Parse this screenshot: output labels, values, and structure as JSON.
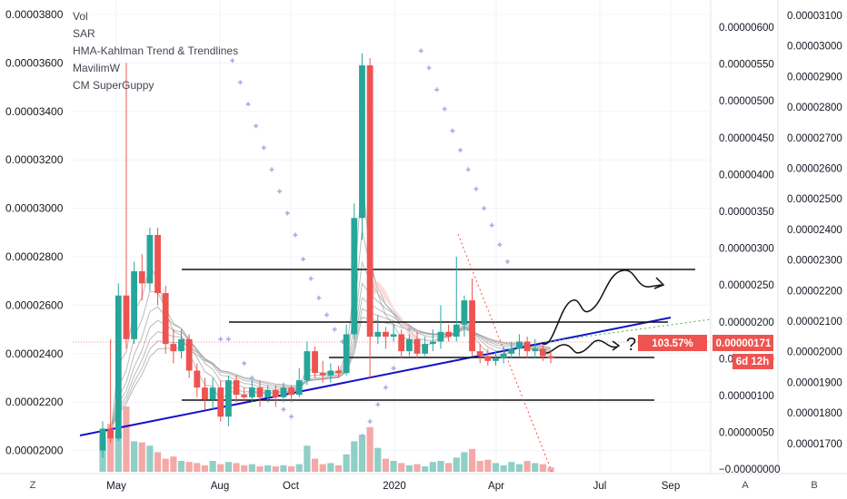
{
  "chart_data": {
    "type": "candlestick",
    "legend": [
      {
        "label": "Vol"
      },
      {
        "label": "SAR"
      },
      {
        "label": "HMA-Kahlman Trend & Trendlines"
      },
      {
        "label": "MavilimW"
      },
      {
        "label": "CM SuperGuppy"
      }
    ],
    "price_axis_left": {
      "ticks": [
        "0.00003800",
        "0.00003600",
        "0.00003400",
        "0.00003200",
        "0.00003000",
        "0.00002800",
        "0.00002600",
        "0.00002400",
        "0.00002200",
        "0.00002000"
      ],
      "range": [
        1.92e-05,
        3.82e-05
      ]
    },
    "volume_axis": {
      "ticks": [
        "0.00000600",
        "0.00000550",
        "0.00000500",
        "0.00000450",
        "0.00000400",
        "0.00000350",
        "0.00000300",
        "0.00000250",
        "0.00000200",
        "0.00000150",
        "0.00000100",
        "0.00000050",
        "−0.00000000"
      ]
    },
    "far_right_axis": {
      "ticks": [
        "0.00003100",
        "0.00003000",
        "0.00002900",
        "0.00002800",
        "0.00002700",
        "0.00002600",
        "0.00002500",
        "0.00002400",
        "0.00002300",
        "0.00002200",
        "0.00002100",
        "0.00002000",
        "0.00001900",
        "0.00001800",
        "0.00001700"
      ]
    },
    "x_axis": {
      "ticks": [
        "May",
        "Aug",
        "Oct",
        "2020",
        "Apr",
        "Jul",
        "Sep"
      ]
    },
    "badges": {
      "percent": "103.57%",
      "price": "0.00000171",
      "countdown": "6d 12h"
    },
    "annotation_text": "?",
    "colors": {
      "up": "#26a69a",
      "down": "#ef5350",
      "up_volume": "#8fcfc6",
      "down_volume": "#f4a9a7",
      "trendline": "#1414c8",
      "level_lines": "#111111",
      "sar": "#b4a7e6",
      "price_line": "#ef5350"
    },
    "candles": [
      [
        2e-05,
        2.09e-05,
        1.97e-05,
        2.12e-05
      ],
      [
        2.09e-05,
        2.05e-05,
        2.03e-05,
        2.46e-05
      ],
      [
        2.05e-05,
        2.64e-05,
        2.04e-05,
        2.69e-05
      ],
      [
        2.64e-05,
        2.46e-05,
        2.42e-05,
        3.6e-05
      ],
      [
        2.46e-05,
        2.74e-05,
        2.44e-05,
        2.78e-05
      ],
      [
        2.74e-05,
        2.69e-05,
        2.62e-05,
        2.81e-05
      ],
      [
        2.69e-05,
        2.89e-05,
        2.66e-05,
        2.92e-05
      ],
      [
        2.89e-05,
        2.65e-05,
        2.6e-05,
        2.92e-05
      ],
      [
        2.65e-05,
        2.44e-05,
        2.4e-05,
        2.68e-05
      ],
      [
        2.44e-05,
        2.41e-05,
        2.36e-05,
        2.5e-05
      ],
      [
        2.41e-05,
        2.46e-05,
        2.38e-05,
        2.5e-05
      ],
      [
        2.46e-05,
        2.33e-05,
        2.3e-05,
        2.48e-05
      ],
      [
        2.33e-05,
        2.26e-05,
        2.22e-05,
        2.36e-05
      ],
      [
        2.26e-05,
        2.21e-05,
        2.17e-05,
        2.3e-05
      ],
      [
        2.21e-05,
        2.26e-05,
        2.17e-05,
        2.3e-05
      ],
      [
        2.26e-05,
        2.14e-05,
        2.12e-05,
        2.29e-05
      ],
      [
        2.14e-05,
        2.29e-05,
        2.1e-05,
        2.31e-05
      ],
      [
        2.29e-05,
        2.23e-05,
        2.2e-05,
        2.31e-05
      ],
      [
        2.23e-05,
        2.22e-05,
        2.2e-05,
        2.26e-05
      ],
      [
        2.22e-05,
        2.26e-05,
        2.2e-05,
        2.29e-05
      ],
      [
        2.26e-05,
        2.22e-05,
        2.18e-05,
        2.29e-05
      ],
      [
        2.22e-05,
        2.25e-05,
        2.2e-05,
        2.27e-05
      ],
      [
        2.25e-05,
        2.22e-05,
        2.18e-05,
        2.27e-05
      ],
      [
        2.22e-05,
        2.26e-05,
        2.2e-05,
        2.28e-05
      ],
      [
        2.26e-05,
        2.23e-05,
        2.2e-05,
        2.27e-05
      ],
      [
        2.23e-05,
        2.29e-05,
        2.22e-05,
        2.34e-05
      ],
      [
        2.29e-05,
        2.41e-05,
        2.27e-05,
        2.45e-05
      ],
      [
        2.41e-05,
        2.32e-05,
        2.3e-05,
        2.43e-05
      ],
      [
        2.32e-05,
        2.31e-05,
        2.28e-05,
        2.37e-05
      ],
      [
        2.31e-05,
        2.33e-05,
        2.28e-05,
        2.36e-05
      ],
      [
        2.33e-05,
        2.32e-05,
        2.3e-05,
        2.35e-05
      ],
      [
        2.32e-05,
        2.48e-05,
        2.31e-05,
        2.52e-05
      ],
      [
        2.48e-05,
        2.96e-05,
        2.46e-05,
        3.02e-05
      ],
      [
        2.96e-05,
        3.59e-05,
        2.87e-05,
        3.64e-05
      ],
      [
        3.59e-05,
        2.47e-05,
        2.3e-05,
        3.62e-05
      ],
      [
        2.47e-05,
        2.49e-05,
        2.44e-05,
        2.56e-05
      ],
      [
        2.49e-05,
        2.47e-05,
        2.42e-05,
        2.51e-05
      ],
      [
        2.47e-05,
        2.48e-05,
        2.45e-05,
        2.52e-05
      ],
      [
        2.48e-05,
        2.41e-05,
        2.38e-05,
        2.5e-05
      ],
      [
        2.41e-05,
        2.46e-05,
        2.39e-05,
        2.48e-05
      ],
      [
        2.46e-05,
        2.4e-05,
        2.38e-05,
        2.49e-05
      ],
      [
        2.4e-05,
        2.44e-05,
        2.39e-05,
        2.47e-05
      ],
      [
        2.44e-05,
        2.45e-05,
        2.41e-05,
        2.5e-05
      ],
      [
        2.45e-05,
        2.49e-05,
        2.42e-05,
        2.6e-05
      ],
      [
        2.49e-05,
        2.47e-05,
        2.45e-05,
        2.52e-05
      ],
      [
        2.47e-05,
        2.52e-05,
        2.45e-05,
        2.8e-05
      ],
      [
        2.52e-05,
        2.62e-05,
        2.47e-05,
        2.64e-05
      ],
      [
        2.62e-05,
        2.41e-05,
        2.39e-05,
        2.71e-05
      ],
      [
        2.41e-05,
        2.39e-05,
        2.36e-05,
        2.44e-05
      ],
      [
        2.39e-05,
        2.37e-05,
        2.35e-05,
        2.42e-05
      ],
      [
        2.37e-05,
        2.38e-05,
        2.35e-05,
        2.41e-05
      ],
      [
        2.38e-05,
        2.4e-05,
        2.36e-05,
        2.43e-05
      ],
      [
        2.4e-05,
        2.42e-05,
        2.38e-05,
        2.45e-05
      ],
      [
        2.42e-05,
        2.45e-05,
        2.39e-05,
        2.48e-05
      ],
      [
        2.45e-05,
        2.41e-05,
        2.38e-05,
        2.47e-05
      ],
      [
        2.41e-05,
        2.42e-05,
        2.38e-05,
        2.46e-05
      ],
      [
        2.42e-05,
        2.39e-05,
        2.37e-05,
        2.44e-05
      ],
      [
        2.39e-05,
        2.38e-05,
        2.36e-05,
        2.41e-05
      ]
    ],
    "volumes": [
      3.2,
      4.4,
      3.6,
      6.0,
      2.8,
      2.7,
      2.4,
      1.8,
      1.2,
      1.4,
      1.0,
      0.9,
      0.8,
      0.6,
      1.0,
      0.7,
      0.9,
      0.8,
      0.6,
      0.7,
      0.5,
      0.6,
      0.5,
      0.6,
      0.5,
      0.7,
      2.4,
      1.2,
      0.7,
      0.8,
      0.6,
      1.6,
      2.8,
      3.4,
      4.1,
      2.2,
      1.2,
      1.0,
      0.8,
      0.6,
      0.7,
      0.5,
      0.9,
      1.0,
      0.8,
      1.3,
      1.8,
      2.1,
      1.0,
      1.1,
      0.8,
      0.6,
      0.9,
      0.7,
      1.0,
      0.8,
      0.7,
      0.4
    ],
    "sar": [
      [
        15,
        2.46e-05
      ],
      [
        16,
        2.46e-05
      ],
      [
        18,
        2.36e-05
      ],
      [
        19,
        2.3e-05
      ],
      [
        20,
        2.25e-05
      ],
      [
        21,
        2.21e-05
      ],
      [
        23,
        2.17e-05
      ],
      [
        24,
        2.14e-05
      ],
      [
        16.5,
        3.61e-05
      ],
      [
        17.5,
        3.52e-05
      ],
      [
        18.5,
        3.43e-05
      ],
      [
        19.5,
        3.34e-05
      ],
      [
        20.5,
        3.25e-05
      ],
      [
        21.5,
        3.16e-05
      ],
      [
        22.5,
        3.07e-05
      ],
      [
        23.5,
        2.98e-05
      ],
      [
        24.5,
        2.89e-05
      ],
      [
        25.5,
        2.79e-05
      ],
      [
        26.5,
        2.71e-05
      ],
      [
        27.5,
        2.63e-05
      ],
      [
        28.5,
        2.56e-05
      ],
      [
        29.5,
        2.5e-05
      ],
      [
        30.5,
        2.45e-05
      ],
      [
        33,
        2.06e-05
      ],
      [
        34,
        2.12e-05
      ],
      [
        35,
        2.19e-05
      ],
      [
        36,
        2.26e-05
      ],
      [
        37,
        2.34e-05
      ],
      [
        38,
        2.42e-05
      ],
      [
        39,
        2.5e-05
      ],
      [
        40.5,
        3.65e-05
      ],
      [
        41.5,
        3.58e-05
      ],
      [
        42.5,
        3.49e-05
      ],
      [
        43.5,
        3.41e-05
      ],
      [
        44.5,
        3.32e-05
      ],
      [
        45.5,
        3.24e-05
      ],
      [
        46.5,
        3.16e-05
      ],
      [
        47.5,
        3.08e-05
      ],
      [
        48.5,
        3e-05
      ],
      [
        49.5,
        2.93e-05
      ],
      [
        50.5,
        2.85e-05
      ],
      [
        51.5,
        2.78e-05
      ]
    ]
  }
}
